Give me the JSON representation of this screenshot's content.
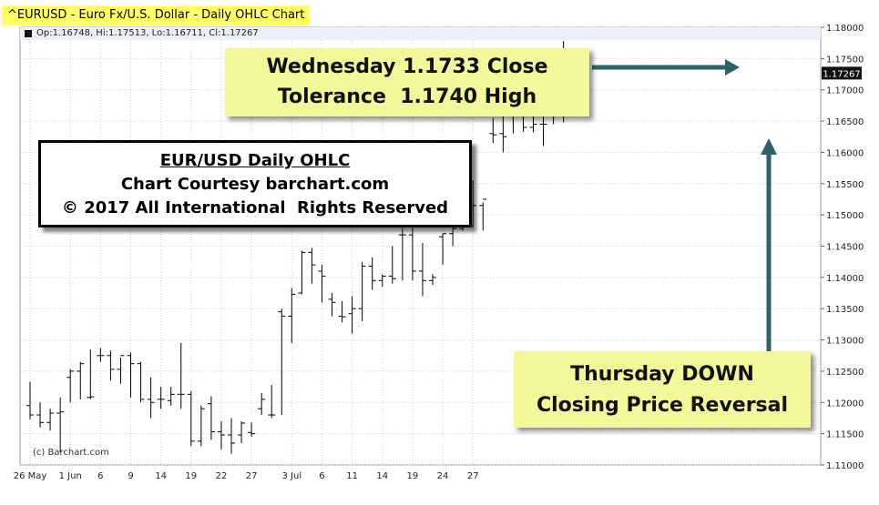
{
  "header": {
    "title": "^EURUSD - Euro Fx/U.S. Dollar - Daily OHLC Chart",
    "ohlc_readout": "Op:1.16748, Hi:1.17513, Lo:1.16711, Cl:1.17267"
  },
  "callouts": {
    "close": {
      "line1": "Wednesday 1.1733 Close",
      "line2": "Tolerance  1.1740 High"
    },
    "reversal": {
      "line1": "Thursday DOWN",
      "line2": "Closing Price Reversal"
    }
  },
  "info_box": {
    "title": "EUR/USD Daily OHLC",
    "line2": "Chart Courtesy barchart.com",
    "line3": "© 2017 All International  Rights Reserved"
  },
  "copyright": "(c) Barchart.com",
  "colors": {
    "bars": "#000000",
    "arrow": "#2a6468",
    "grid": "#d0d0d0",
    "callout": "#f4f69a",
    "last_price_box": "#111111"
  },
  "chart_data": {
    "type": "ohlc",
    "title": "^EURUSD - Euro Fx/U.S. Dollar - Daily OHLC Chart",
    "ylim": [
      1.11,
      1.18
    ],
    "y_ticks": [
      "1.18000",
      "1.17500",
      "1.17000",
      "1.16500",
      "1.16000",
      "1.15500",
      "1.15000",
      "1.14500",
      "1.14000",
      "1.13500",
      "1.13000",
      "1.12500",
      "1.12000",
      "1.11500",
      "1.11000"
    ],
    "x_ticks": [
      {
        "label": "26 May",
        "index": 0
      },
      {
        "label": "1 Jun",
        "index": 4
      },
      {
        "label": "6",
        "index": 7
      },
      {
        "label": "9",
        "index": 10
      },
      {
        "label": "14",
        "index": 13
      },
      {
        "label": "19",
        "index": 16
      },
      {
        "label": "22",
        "index": 19
      },
      {
        "label": "27",
        "index": 22
      },
      {
        "label": "3 Jul",
        "index": 26
      },
      {
        "label": "6",
        "index": 29
      },
      {
        "label": "11",
        "index": 32
      },
      {
        "label": "14",
        "index": 35
      },
      {
        "label": "19",
        "index": 38
      },
      {
        "label": "24",
        "index": 41
      },
      {
        "label": "27",
        "index": 44
      }
    ],
    "last_price": "1.17267",
    "grid": true,
    "series": [
      {
        "date": "26 May",
        "open": 1.1195,
        "high": 1.1233,
        "low": 1.1173,
        "close": 1.118
      },
      {
        "date": "29 May",
        "open": 1.118,
        "high": 1.12,
        "low": 1.116,
        "close": 1.1168
      },
      {
        "date": "30 May",
        "open": 1.1168,
        "high": 1.119,
        "low": 1.1155,
        "close": 1.1183
      },
      {
        "date": "31 May",
        "open": 1.1183,
        "high": 1.1208,
        "low": 1.112,
        "close": 1.1185
      },
      {
        "date": "1 Jun",
        "open": 1.124,
        "high": 1.1253,
        "low": 1.12,
        "close": 1.125
      },
      {
        "date": "2 Jun",
        "open": 1.125,
        "high": 1.1265,
        "low": 1.1205,
        "close": 1.1262
      },
      {
        "date": "5 Jun",
        "open": 1.1208,
        "high": 1.1285,
        "low": 1.1205,
        "close": 1.1209
      },
      {
        "date": "6 Jun",
        "open": 1.1275,
        "high": 1.1287,
        "low": 1.1265,
        "close": 1.1275
      },
      {
        "date": "7 Jun",
        "open": 1.1275,
        "high": 1.1283,
        "low": 1.1235,
        "close": 1.1253
      },
      {
        "date": "8 Jun",
        "open": 1.1253,
        "high": 1.1272,
        "low": 1.123,
        "close": 1.1275
      },
      {
        "date": "9 Jun",
        "open": 1.1275,
        "high": 1.128,
        "low": 1.1208,
        "close": 1.1262
      },
      {
        "date": "12 Jun",
        "open": 1.1262,
        "high": 1.1265,
        "low": 1.12,
        "close": 1.1205
      },
      {
        "date": "13 Jun",
        "open": 1.1205,
        "high": 1.124,
        "low": 1.1175,
        "close": 1.12
      },
      {
        "date": "14 Jun",
        "open": 1.1205,
        "high": 1.1225,
        "low": 1.119,
        "close": 1.1205
      },
      {
        "date": "15 Jun",
        "open": 1.1203,
        "high": 1.1225,
        "low": 1.1195,
        "close": 1.1213
      },
      {
        "date": "16 Jun",
        "open": 1.1213,
        "high": 1.1295,
        "low": 1.119,
        "close": 1.1213
      },
      {
        "date": "19 Jun",
        "open": 1.1213,
        "high": 1.1218,
        "low": 1.113,
        "close": 1.1138
      },
      {
        "date": "20 Jun",
        "open": 1.1138,
        "high": 1.1195,
        "low": 1.113,
        "close": 1.119
      },
      {
        "date": "21 Jun",
        "open": 1.1198,
        "high": 1.121,
        "low": 1.114,
        "close": 1.1153
      },
      {
        "date": "22 Jun",
        "open": 1.1153,
        "high": 1.117,
        "low": 1.1125,
        "close": 1.1148
      },
      {
        "date": "23 Jun",
        "open": 1.1148,
        "high": 1.1175,
        "low": 1.1118,
        "close": 1.1135
      },
      {
        "date": "26 Jun",
        "open": 1.1148,
        "high": 1.117,
        "low": 1.1135,
        "close": 1.1167
      },
      {
        "date": "27 Jun",
        "open": 1.1152,
        "high": 1.1168,
        "low": 1.1145,
        "close": 1.115
      },
      {
        "date": "28 Jun",
        "open": 1.119,
        "high": 1.1215,
        "low": 1.118,
        "close": 1.1205
      },
      {
        "date": "29 Jun",
        "open": 1.118,
        "high": 1.1228,
        "low": 1.1175,
        "close": 1.118
      },
      {
        "date": "30 Jun",
        "open": 1.1345,
        "high": 1.135,
        "low": 1.118,
        "close": 1.1338
      },
      {
        "date": "3 Jul",
        "open": 1.1338,
        "high": 1.1383,
        "low": 1.1295,
        "close": 1.1373
      },
      {
        "date": "4 Jul",
        "open": 1.1375,
        "high": 1.1443,
        "low": 1.1373,
        "close": 1.144
      },
      {
        "date": "5 Jul",
        "open": 1.144,
        "high": 1.1447,
        "low": 1.139,
        "close": 1.142
      },
      {
        "date": "6 Jul",
        "open": 1.141,
        "high": 1.142,
        "low": 1.136,
        "close": 1.1402
      },
      {
        "date": "7 Jul",
        "open": 1.1365,
        "high": 1.1375,
        "low": 1.1338,
        "close": 1.136
      },
      {
        "date": "10 Jul",
        "open": 1.1338,
        "high": 1.1362,
        "low": 1.1328,
        "close": 1.1337
      },
      {
        "date": "11 Jul",
        "open": 1.1342,
        "high": 1.137,
        "low": 1.131,
        "close": 1.135
      },
      {
        "date": "12 Jul",
        "open": 1.135,
        "high": 1.1425,
        "low": 1.133,
        "close": 1.1418
      },
      {
        "date": "13 Jul",
        "open": 1.1418,
        "high": 1.1432,
        "low": 1.138,
        "close": 1.1395
      },
      {
        "date": "14 Jul",
        "open": 1.1395,
        "high": 1.1405,
        "low": 1.1385,
        "close": 1.1402
      },
      {
        "date": "17 Jul",
        "open": 1.1402,
        "high": 1.145,
        "low": 1.139,
        "close": 1.1398
      },
      {
        "date": "18 Jul",
        "open": 1.1468,
        "high": 1.149,
        "low": 1.1395,
        "close": 1.1468
      },
      {
        "date": "19 Jul",
        "open": 1.1468,
        "high": 1.148,
        "low": 1.1395,
        "close": 1.141
      },
      {
        "date": "20 Jul",
        "open": 1.141,
        "high": 1.1455,
        "low": 1.137,
        "close": 1.1395
      },
      {
        "date": "21 Jul",
        "open": 1.1395,
        "high": 1.1405,
        "low": 1.1388,
        "close": 1.14
      },
      {
        "date": "24 Jul",
        "open": 1.1465,
        "high": 1.147,
        "low": 1.142,
        "close": 1.147
      },
      {
        "date": "25 Jul",
        "open": 1.147,
        "high": 1.1485,
        "low": 1.145,
        "close": 1.1478
      },
      {
        "date": "26 Jul",
        "open": 1.1478,
        "high": 1.158,
        "low": 1.1475,
        "close": 1.1553
      },
      {
        "date": "27 Jul",
        "open": 1.1553,
        "high": 1.1555,
        "low": 1.148,
        "close": 1.1515
      },
      {
        "date": "28 Jul",
        "open": 1.1515,
        "high": 1.152,
        "low": 1.1475,
        "close": 1.1525
      },
      {
        "date": "31 Jul",
        "open": 1.163,
        "high": 1.1655,
        "low": 1.1615,
        "close": 1.1628
      },
      {
        "date": "1 Aug",
        "open": 1.163,
        "high": 1.1665,
        "low": 1.16,
        "close": 1.1625
      },
      {
        "date": "2 Aug",
        "open": 1.168,
        "high": 1.1685,
        "low": 1.163,
        "close": 1.1678
      },
      {
        "date": "3 Aug",
        "open": 1.1678,
        "high": 1.168,
        "low": 1.1633,
        "close": 1.164
      },
      {
        "date": "4 Aug",
        "open": 1.164,
        "high": 1.1665,
        "low": 1.1632,
        "close": 1.1645
      },
      {
        "date": "7 Aug",
        "open": 1.1645,
        "high": 1.1715,
        "low": 1.161,
        "close": 1.1645
      },
      {
        "date": "8 Aug",
        "open": 1.1733,
        "high": 1.174,
        "low": 1.1645,
        "close": 1.1733
      },
      {
        "date": "9 Aug",
        "open": 1.1733,
        "high": 1.1778,
        "low": 1.1648,
        "close": 1.1675
      },
      {
        "date": "10 Aug",
        "open": 1.1675,
        "high": 1.1751,
        "low": 1.1671,
        "close": 1.1727
      }
    ]
  }
}
